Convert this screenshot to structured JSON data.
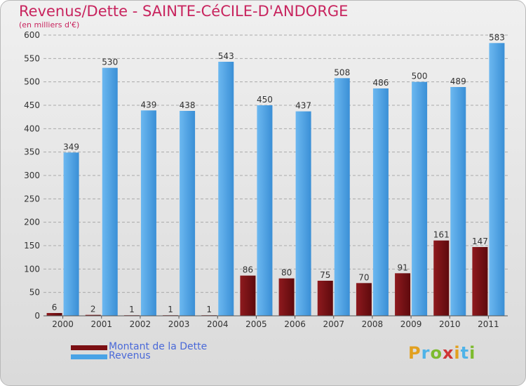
{
  "title": "Revenus/Dette - SAINTE-CéCILE-D'ANDORGE",
  "subtitle": "(en milliers d'€)",
  "logo_text": "Proxiti",
  "colors": {
    "dette": "#7b0f13",
    "revenus": "#4aa3e6",
    "title": "#c8245e",
    "legend_text": "#4a69d8",
    "grid": "#a9a9a9"
  },
  "legend": [
    {
      "label": "Montant de la Dette",
      "color": "#7b0f13"
    },
    {
      "label": "Revenus",
      "color": "#4aa3e6"
    }
  ],
  "chart_data": {
    "type": "bar",
    "categories": [
      "2000",
      "2001",
      "2002",
      "2003",
      "2004",
      "2005",
      "2006",
      "2007",
      "2008",
      "2009",
      "2010",
      "2011"
    ],
    "series": [
      {
        "name": "Montant de la Dette",
        "values": [
          6,
          2,
          1,
          1,
          1,
          86,
          80,
          75,
          70,
          91,
          161,
          147
        ]
      },
      {
        "name": "Revenus",
        "values": [
          349,
          530,
          439,
          438,
          543,
          450,
          437,
          508,
          486,
          500,
          489,
          583
        ]
      }
    ],
    "y_ticks": [
      "0",
      "50",
      "100",
      "150",
      "200",
      "250",
      "300",
      "350",
      "400",
      "450",
      "500",
      "550",
      "600"
    ],
    "ylim": [
      0,
      600
    ],
    "grid": true,
    "legend_position": "bottom-left"
  }
}
